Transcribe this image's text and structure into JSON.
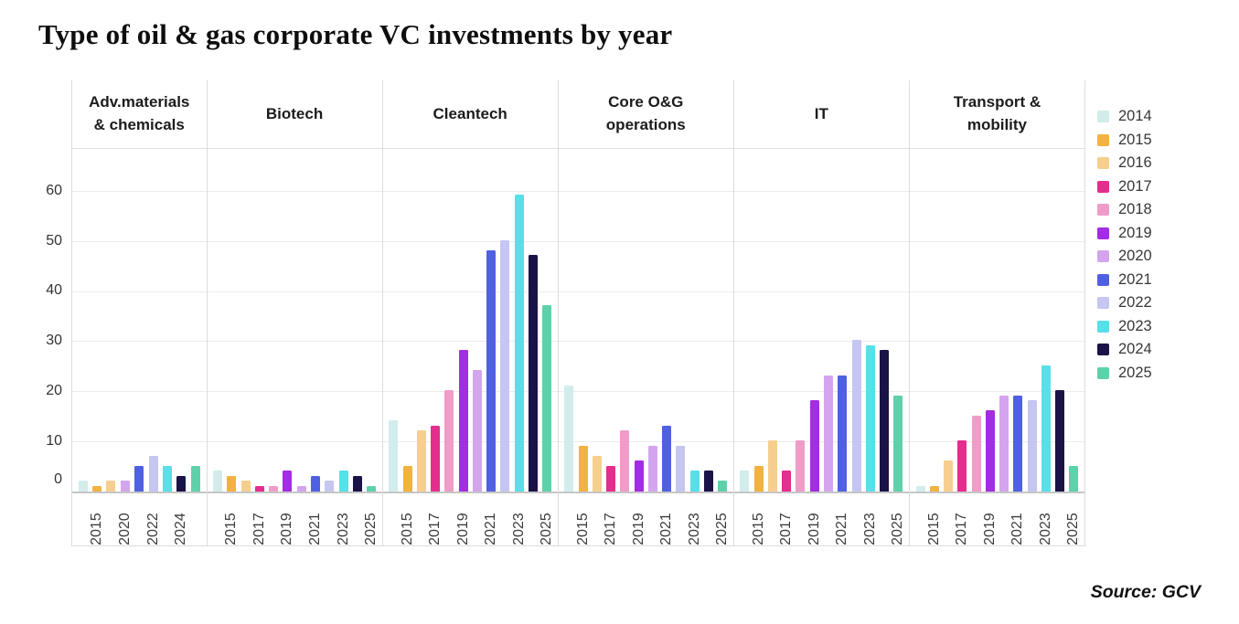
{
  "chart_data": {
    "type": "bar",
    "title": "Type of oil & gas corporate VC investments by year",
    "source": "Source: GCV",
    "xlabel": "",
    "ylabel": "",
    "ylim": [
      0,
      60
    ],
    "yticks": [
      0,
      10,
      20,
      30,
      40,
      50,
      60
    ],
    "grid": true,
    "legend_position": "right",
    "legend": [
      {
        "label": "2014",
        "color": "#d2ecec"
      },
      {
        "label": "2015",
        "color": "#f2b240"
      },
      {
        "label": "2016",
        "color": "#f6cf8e"
      },
      {
        "label": "2017",
        "color": "#e42d8c"
      },
      {
        "label": "2018",
        "color": "#ef9cc9"
      },
      {
        "label": "2019",
        "color": "#a42ce2"
      },
      {
        "label": "2020",
        "color": "#d4a5ee"
      },
      {
        "label": "2021",
        "color": "#4f61e1"
      },
      {
        "label": "2022",
        "color": "#c5c6f1"
      },
      {
        "label": "2023",
        "color": "#58dfe8"
      },
      {
        "label": "2024",
        "color": "#1a1347"
      },
      {
        "label": "2025",
        "color": "#5fd1aa"
      }
    ],
    "groups": [
      {
        "label": "Adv.materials\n& chemicals",
        "years": [
          "2014",
          "2015",
          "2016",
          "2020",
          "2021",
          "2022",
          "2023",
          "2024",
          "2025"
        ],
        "values": [
          2,
          1,
          2,
          2,
          5,
          7,
          5,
          3,
          5
        ],
        "tick_labels": [
          "2015",
          "2020",
          "2022",
          "2024"
        ]
      },
      {
        "label": "Biotech",
        "years": [
          "2014",
          "2015",
          "2016",
          "2017",
          "2018",
          "2019",
          "2020",
          "2021",
          "2022",
          "2023",
          "2024",
          "2025"
        ],
        "values": [
          4,
          3,
          2,
          1,
          1,
          4,
          1,
          3,
          2,
          4,
          3,
          1
        ],
        "tick_labels": [
          "2015",
          "2017",
          "2019",
          "2021",
          "2023",
          "2025"
        ]
      },
      {
        "label": "Cleantech",
        "years": [
          "2014",
          "2015",
          "2016",
          "2017",
          "2018",
          "2019",
          "2020",
          "2021",
          "2022",
          "2023",
          "2024",
          "2025"
        ],
        "values": [
          14,
          5,
          12,
          13,
          20,
          28,
          24,
          48,
          50,
          59,
          47,
          37
        ],
        "tick_labels": [
          "2015",
          "2017",
          "2019",
          "2021",
          "2023",
          "2025"
        ]
      },
      {
        "label": "Core O&G\noperations",
        "years": [
          "2014",
          "2015",
          "2016",
          "2017",
          "2018",
          "2019",
          "2020",
          "2021",
          "2022",
          "2023",
          "2024",
          "2025"
        ],
        "values": [
          21,
          9,
          7,
          5,
          12,
          6,
          9,
          13,
          9,
          4,
          4,
          2
        ],
        "tick_labels": [
          "2015",
          "2017",
          "2019",
          "2021",
          "2023",
          "2025"
        ]
      },
      {
        "label": "IT",
        "years": [
          "2014",
          "2015",
          "2016",
          "2017",
          "2018",
          "2019",
          "2020",
          "2021",
          "2022",
          "2023",
          "2024",
          "2025"
        ],
        "values": [
          4,
          5,
          10,
          4,
          10,
          18,
          23,
          23,
          30,
          29,
          28,
          19
        ],
        "tick_labels": [
          "2015",
          "2017",
          "2019",
          "2021",
          "2023",
          "2025"
        ]
      },
      {
        "label": "Transport &\nmobility",
        "years": [
          "2014",
          "2015",
          "2016",
          "2017",
          "2018",
          "2019",
          "2020",
          "2021",
          "2022",
          "2023",
          "2024",
          "2025"
        ],
        "values": [
          1,
          1,
          6,
          10,
          15,
          16,
          19,
          19,
          18,
          25,
          20,
          5
        ],
        "tick_labels": [
          "2015",
          "2017",
          "2019",
          "2021",
          "2023",
          "2025"
        ]
      }
    ]
  }
}
